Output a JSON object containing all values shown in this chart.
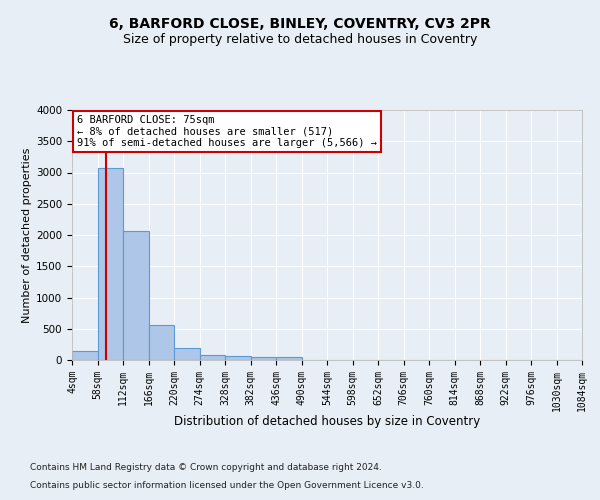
{
  "title": "6, BARFORD CLOSE, BINLEY, COVENTRY, CV3 2PR",
  "subtitle": "Size of property relative to detached houses in Coventry",
  "xlabel": "Distribution of detached houses by size in Coventry",
  "ylabel": "Number of detached properties",
  "bin_edges": [
    4,
    58,
    112,
    166,
    220,
    274,
    328,
    382,
    436,
    490,
    544,
    598,
    652,
    706,
    760,
    814,
    868,
    922,
    976,
    1030,
    1084
  ],
  "bar_heights": [
    140,
    3065,
    2060,
    560,
    200,
    80,
    60,
    45,
    45,
    0,
    0,
    0,
    0,
    0,
    0,
    0,
    0,
    0,
    0,
    0
  ],
  "bar_color": "#aec6e8",
  "bar_edgecolor": "#5b9bd5",
  "property_line_x": 75,
  "property_line_color": "#cc0000",
  "annotation_text": "6 BARFORD CLOSE: 75sqm\n← 8% of detached houses are smaller (517)\n91% of semi-detached houses are larger (5,566) →",
  "annotation_box_color": "#ffffff",
  "annotation_box_edgecolor": "#cc0000",
  "ylim": [
    0,
    4000
  ],
  "yticks": [
    0,
    500,
    1000,
    1500,
    2000,
    2500,
    3000,
    3500,
    4000
  ],
  "tick_labels": [
    "4sqm",
    "58sqm",
    "112sqm",
    "166sqm",
    "220sqm",
    "274sqm",
    "328sqm",
    "382sqm",
    "436sqm",
    "490sqm",
    "544sqm",
    "598sqm",
    "652sqm",
    "706sqm",
    "760sqm",
    "814sqm",
    "868sqm",
    "922sqm",
    "976sqm",
    "1030sqm",
    "1084sqm"
  ],
  "footer1": "Contains HM Land Registry data © Crown copyright and database right 2024.",
  "footer2": "Contains public sector information licensed under the Open Government Licence v3.0.",
  "background_color": "#e8eef5",
  "plot_background_color": "#e8eef5",
  "grid_color": "#ffffff",
  "title_fontsize": 10,
  "subtitle_fontsize": 9,
  "xlabel_fontsize": 8.5,
  "ylabel_fontsize": 8,
  "tick_fontsize": 7,
  "footer_fontsize": 6.5
}
